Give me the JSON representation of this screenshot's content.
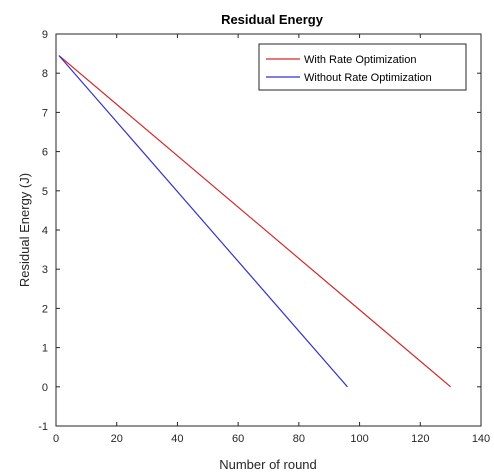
{
  "chart_data": {
    "type": "line",
    "title": "Residual Energy",
    "xlabel": "Number of round",
    "ylabel": "Residual Energy (J)",
    "xlim": [
      0,
      140
    ],
    "ylim": [
      -1,
      9
    ],
    "xticks": [
      0,
      20,
      40,
      60,
      80,
      100,
      120,
      140
    ],
    "yticks": [
      -1,
      0,
      1,
      2,
      3,
      4,
      5,
      6,
      7,
      8,
      9
    ],
    "grid": false,
    "legend_position": "top-right",
    "series": [
      {
        "name": "With Rate Optimization",
        "color": "#d62728",
        "x": [
          1,
          130
        ],
        "y": [
          8.45,
          0
        ]
      },
      {
        "name": "Without Rate Optimization",
        "color": "#3333cc",
        "x": [
          1,
          96
        ],
        "y": [
          8.45,
          0
        ]
      }
    ]
  }
}
